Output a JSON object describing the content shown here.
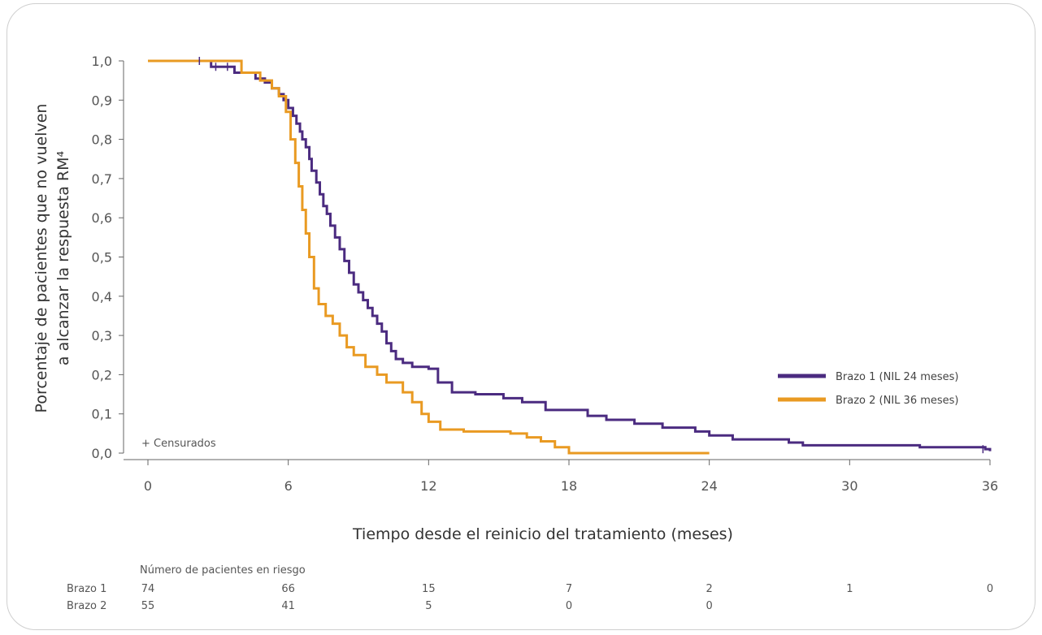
{
  "chart_data": {
    "type": "line",
    "xlabel": "Tiempo desde el reinicio del tratamiento (meses)",
    "ylabel_line1": "Porcentaje de pacientes que no vuelven",
    "ylabel_line2": "a alcanzar la respuesta RM⁴",
    "xlim": [
      0,
      36
    ],
    "ylim": [
      0,
      1
    ],
    "x_ticks": [
      0,
      6,
      12,
      18,
      24,
      30,
      36
    ],
    "x_tick_labels": [
      "0",
      "6",
      "12",
      "18",
      "24",
      "30",
      "36"
    ],
    "y_ticks": [
      0,
      0.1,
      0.2,
      0.3,
      0.4,
      0.5,
      0.6,
      0.7,
      0.8,
      0.9,
      1.0
    ],
    "y_tick_labels": [
      "0,0",
      "0,1",
      "0,2",
      "0,3",
      "0,4",
      "0,5",
      "0,6",
      "0,7",
      "0,8",
      "0,9",
      "1,0"
    ],
    "censor_note": "+ Censurados",
    "legend_position": "right",
    "series": [
      {
        "name": "Brazo 1 (NIL 24 meses)",
        "color": "#4b2b80",
        "step": true,
        "x": [
          0,
          2.7,
          3.7,
          4.6,
          5.0,
          5.3,
          5.6,
          5.8,
          6.0,
          6.2,
          6.35,
          6.5,
          6.6,
          6.75,
          6.9,
          7.0,
          7.2,
          7.35,
          7.5,
          7.65,
          7.8,
          8.0,
          8.2,
          8.4,
          8.6,
          8.8,
          9.0,
          9.2,
          9.4,
          9.6,
          9.8,
          10.0,
          10.2,
          10.4,
          10.6,
          10.9,
          11.3,
          12.0,
          12.4,
          13.0,
          14.0,
          15.2,
          16.0,
          17.0,
          18.8,
          19.6,
          20.8,
          22.0,
          23.4,
          24.0,
          25.0,
          27.4,
          28.0,
          33.0,
          35.8,
          36.0
        ],
        "y": [
          1.0,
          0.985,
          0.97,
          0.955,
          0.945,
          0.93,
          0.915,
          0.9,
          0.88,
          0.86,
          0.84,
          0.82,
          0.8,
          0.78,
          0.75,
          0.72,
          0.69,
          0.66,
          0.63,
          0.61,
          0.58,
          0.55,
          0.52,
          0.49,
          0.46,
          0.43,
          0.41,
          0.39,
          0.37,
          0.35,
          0.33,
          0.31,
          0.28,
          0.26,
          0.24,
          0.23,
          0.22,
          0.215,
          0.18,
          0.155,
          0.15,
          0.14,
          0.13,
          0.11,
          0.095,
          0.085,
          0.075,
          0.065,
          0.055,
          0.045,
          0.035,
          0.027,
          0.02,
          0.015,
          0.01,
          0.005
        ]
      },
      {
        "name": "Brazo 2 (NIL 36 meses)",
        "color": "#e99a22",
        "step": true,
        "x": [
          0,
          4.0,
          4.8,
          5.3,
          5.6,
          5.9,
          6.1,
          6.3,
          6.45,
          6.6,
          6.75,
          6.9,
          7.1,
          7.3,
          7.6,
          7.9,
          8.2,
          8.5,
          8.8,
          9.3,
          9.8,
          10.2,
          10.9,
          11.3,
          11.7,
          12.0,
          12.5,
          13.5,
          15.5,
          16.2,
          16.8,
          17.4,
          18.0,
          24.0
        ],
        "y": [
          1.0,
          0.97,
          0.95,
          0.93,
          0.91,
          0.87,
          0.8,
          0.74,
          0.68,
          0.62,
          0.56,
          0.5,
          0.42,
          0.38,
          0.35,
          0.33,
          0.3,
          0.27,
          0.25,
          0.22,
          0.2,
          0.18,
          0.155,
          0.13,
          0.1,
          0.08,
          0.06,
          0.055,
          0.05,
          0.04,
          0.03,
          0.015,
          0.0,
          0.0
        ]
      }
    ],
    "censor_marks": [
      {
        "series": 0,
        "x": 2.2,
        "y": 1.0
      },
      {
        "series": 0,
        "x": 2.9,
        "y": 0.985
      },
      {
        "series": 0,
        "x": 3.4,
        "y": 0.985
      },
      {
        "series": 0,
        "x": 35.7,
        "y": 0.01
      }
    ]
  },
  "risk_table": {
    "title": "Número de pacientes en riesgo",
    "rows": [
      {
        "label": "Brazo 1",
        "values": [
          "74",
          "66",
          "15",
          "7",
          "2",
          "1",
          "0"
        ]
      },
      {
        "label": "Brazo 2",
        "values": [
          "55",
          "41",
          "5",
          "0",
          "0",
          "",
          ""
        ]
      }
    ]
  }
}
